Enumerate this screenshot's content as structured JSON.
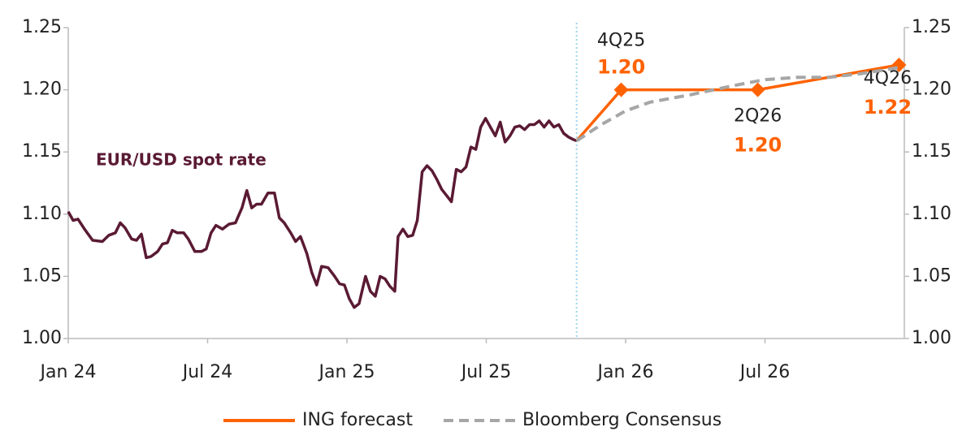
{
  "chart_data": {
    "type": "line",
    "xlim": [
      0,
      36
    ],
    "xticks": [
      {
        "value": 0,
        "label": "Jan 24"
      },
      {
        "value": 6,
        "label": "Jul 24"
      },
      {
        "value": 12,
        "label": "Jan 25"
      },
      {
        "value": 18,
        "label": "Jul 25"
      },
      {
        "value": 24,
        "label": "Jan 26"
      },
      {
        "value": 30,
        "label": "Jul 26"
      }
    ],
    "ylim": [
      1.0,
      1.25
    ],
    "yticks": [
      {
        "value": 1.0,
        "label": "1.00"
      },
      1.05,
      {
        "value": 1.1,
        "label": "1.10"
      },
      1.15,
      {
        "value": 1.2,
        "label": "1.20"
      },
      1.25
    ],
    "y2lim": [
      1.0,
      1.25
    ],
    "y2ticks": [
      {
        "value": 1.0,
        "label": "1.00"
      },
      1.05,
      {
        "value": 1.1,
        "label": "1.10"
      },
      1.15,
      {
        "value": 1.2,
        "label": "1.20"
      },
      1.25
    ],
    "vline": 21.89,
    "series": [
      {
        "name": "EUR/USD spot rate",
        "color": "#5a1a33",
        "direct_label": true,
        "x": [
          0,
          0.21,
          0.42,
          0.7,
          1.05,
          1.47,
          1.75,
          2.03,
          2.24,
          2.45,
          2.73,
          2.94,
          3.15,
          3.36,
          3.57,
          3.85,
          4.06,
          4.27,
          4.48,
          4.69,
          4.97,
          5.17,
          5.45,
          5.73,
          5.94,
          6.15,
          6.36,
          6.64,
          6.92,
          7.2,
          7.48,
          7.69,
          7.9,
          8.11,
          8.32,
          8.6,
          8.88,
          9.09,
          9.3,
          9.58,
          9.79,
          10.0,
          10.28,
          10.49,
          10.7,
          10.91,
          11.19,
          11.47,
          11.68,
          11.89,
          12.1,
          12.31,
          12.52,
          12.8,
          13.01,
          13.22,
          13.43,
          13.64,
          13.85,
          14.06,
          14.2,
          14.41,
          14.62,
          14.83,
          15.03,
          15.24,
          15.45,
          15.66,
          15.87,
          16.08,
          16.29,
          16.5,
          16.71,
          16.92,
          17.13,
          17.34,
          17.55,
          17.76,
          17.97,
          18.18,
          18.39,
          18.6,
          18.81,
          19.02,
          19.23,
          19.44,
          19.65,
          19.86,
          20.07,
          20.28,
          20.49,
          20.7,
          20.91,
          21.12,
          21.33,
          21.54,
          21.75,
          21.89
        ],
        "values": [
          1.102,
          1.095,
          1.096,
          1.088,
          1.079,
          1.078,
          1.083,
          1.085,
          1.093,
          1.089,
          1.08,
          1.079,
          1.084,
          1.065,
          1.066,
          1.07,
          1.076,
          1.077,
          1.087,
          1.085,
          1.085,
          1.08,
          1.07,
          1.07,
          1.072,
          1.085,
          1.091,
          1.088,
          1.092,
          1.093,
          1.105,
          1.119,
          1.105,
          1.108,
          1.108,
          1.117,
          1.117,
          1.097,
          1.093,
          1.085,
          1.078,
          1.082,
          1.068,
          1.053,
          1.043,
          1.058,
          1.057,
          1.05,
          1.044,
          1.043,
          1.032,
          1.025,
          1.028,
          1.05,
          1.038,
          1.034,
          1.05,
          1.048,
          1.042,
          1.038,
          1.082,
          1.088,
          1.082,
          1.083,
          1.095,
          1.134,
          1.139,
          1.135,
          1.128,
          1.12,
          1.115,
          1.11,
          1.136,
          1.134,
          1.138,
          1.154,
          1.152,
          1.17,
          1.177,
          1.17,
          1.163,
          1.174,
          1.158,
          1.163,
          1.17,
          1.171,
          1.168,
          1.172,
          1.172,
          1.175,
          1.17,
          1.175,
          1.17,
          1.172,
          1.165,
          1.162,
          1.16,
          1.159
        ]
      },
      {
        "name": "ING forecast",
        "color": "#ff6200",
        "markers": true,
        "x": [
          21.89,
          23.81,
          29.69,
          35.77
        ],
        "values": [
          1.159,
          1.2,
          1.2,
          1.22
        ],
        "value_labels": [
          null,
          "1.20",
          "1.20",
          "1.22"
        ],
        "point_labels": [
          null,
          "4Q25",
          "2Q26",
          "4Q26"
        ]
      },
      {
        "name": "Bloomberg Consensus",
        "color": "#a6a6a6",
        "dashed": true,
        "x": [
          21.89,
          22.95,
          24.0,
          25.05,
          26.8,
          28.55,
          29.95,
          31.35,
          32.75,
          34.15,
          35.8
        ],
        "values": [
          1.159,
          1.172,
          1.183,
          1.19,
          1.196,
          1.203,
          1.208,
          1.21,
          1.21,
          1.213,
          1.218
        ]
      }
    ]
  }
}
